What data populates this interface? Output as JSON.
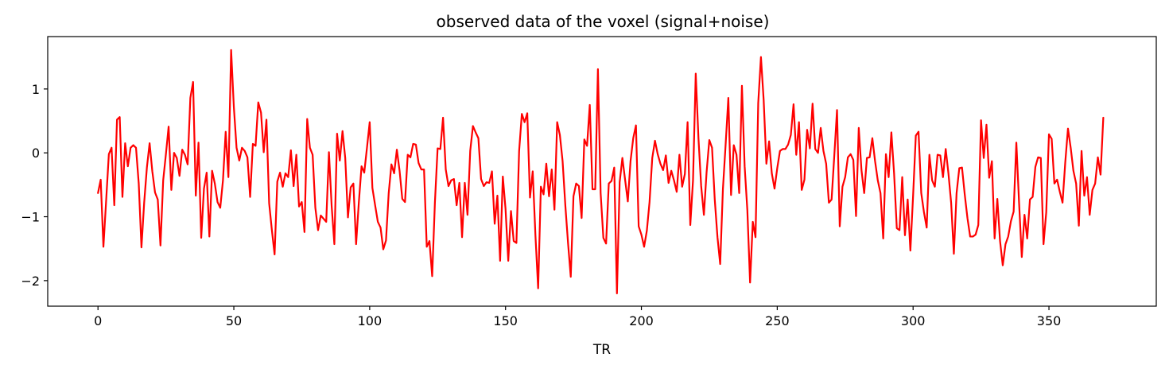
{
  "chart_data": {
    "type": "line",
    "title": "observed data of the voxel (signal+noise)",
    "xlabel": "TR",
    "ylabel": "",
    "xlim": [
      -18.5,
      389.5
    ],
    "ylim": [
      -2.4,
      1.82
    ],
    "xticks": [
      0,
      50,
      100,
      150,
      200,
      250,
      300,
      350
    ],
    "xtick_labels": [
      "0",
      "50",
      "100",
      "150",
      "200",
      "250",
      "300",
      "350"
    ],
    "yticks": [
      1,
      0,
      -1,
      -2
    ],
    "ytick_labels": [
      "1",
      "0",
      "−1",
      "−2"
    ],
    "grid": false,
    "legend": "none",
    "series": [
      {
        "color": "#ff0000",
        "values": [
          -0.63,
          -0.42,
          -1.47,
          -0.75,
          -0.02,
          0.08,
          -0.82,
          0.52,
          0.56,
          -0.69,
          0.15,
          -0.21,
          0.08,
          0.12,
          0.08,
          -0.48,
          -1.48,
          -0.78,
          -0.23,
          0.15,
          -0.29,
          -0.62,
          -0.73,
          -1.45,
          -0.43,
          -0.02,
          0.41,
          -0.58,
          0.0,
          -0.08,
          -0.36,
          0.05,
          -0.03,
          -0.18,
          0.86,
          1.11,
          -0.67,
          0.16,
          -1.33,
          -0.56,
          -0.31,
          -1.31,
          -0.28,
          -0.48,
          -0.77,
          -0.86,
          -0.43,
          0.33,
          -0.38,
          1.61,
          0.72,
          0.08,
          -0.12,
          0.08,
          0.03,
          -0.07,
          -0.69,
          0.14,
          0.11,
          0.79,
          0.63,
          0.01,
          0.52,
          -0.79,
          -1.21,
          -1.59,
          -0.45,
          -0.31,
          -0.53,
          -0.32,
          -0.38,
          0.04,
          -0.52,
          -0.03,
          -0.84,
          -0.77,
          -1.24,
          0.53,
          0.08,
          -0.03,
          -0.86,
          -1.21,
          -0.98,
          -1.03,
          -1.08,
          0.01,
          -0.83,
          -1.43,
          0.3,
          -0.12,
          0.34,
          -0.08,
          -1.01,
          -0.54,
          -0.48,
          -1.43,
          -0.78,
          -0.21,
          -0.31,
          0.08,
          0.48,
          -0.55,
          -0.82,
          -1.08,
          -1.17,
          -1.51,
          -1.37,
          -0.63,
          -0.18,
          -0.32,
          0.05,
          -0.28,
          -0.72,
          -0.77,
          -0.03,
          -0.07,
          0.14,
          0.13,
          -0.16,
          -0.26,
          -0.26,
          -1.47,
          -1.38,
          -1.93,
          -0.78,
          0.07,
          0.06,
          0.55,
          -0.26,
          -0.52,
          -0.43,
          -0.41,
          -0.82,
          -0.47,
          -1.32,
          -0.47,
          -0.97,
          0.03,
          0.42,
          0.32,
          0.23,
          -0.41,
          -0.52,
          -0.46,
          -0.47,
          -0.29,
          -1.11,
          -0.67,
          -1.69,
          -0.37,
          -0.88,
          -1.69,
          -0.91,
          -1.38,
          -1.41,
          0.03,
          0.61,
          0.48,
          0.62,
          -0.7,
          -0.29,
          -1.29,
          -2.12,
          -0.53,
          -0.65,
          -0.17,
          -0.68,
          -0.26,
          -0.89,
          0.48,
          0.28,
          -0.13,
          -0.82,
          -1.41,
          -1.94,
          -0.68,
          -0.48,
          -0.52,
          -1.02,
          0.21,
          0.11,
          0.75,
          -0.57,
          -0.57,
          1.31,
          -0.63,
          -1.33,
          -1.42,
          -0.48,
          -0.44,
          -0.23,
          -2.2,
          -0.46,
          -0.08,
          -0.42,
          -0.76,
          -0.13,
          0.23,
          0.43,
          -1.15,
          -1.28,
          -1.47,
          -1.22,
          -0.77,
          -0.08,
          0.19,
          -0.02,
          -0.17,
          -0.27,
          -0.04,
          -0.47,
          -0.28,
          -0.43,
          -0.61,
          -0.03,
          -0.53,
          -0.33,
          0.48,
          -1.13,
          -0.43,
          1.24,
          0.23,
          -0.52,
          -0.97,
          -0.3,
          0.2,
          0.08,
          -0.73,
          -1.32,
          -1.74,
          -0.57,
          0.13,
          0.86,
          -0.66,
          0.12,
          -0.03,
          -0.63,
          1.05,
          -0.21,
          -0.9,
          -2.03,
          -1.08,
          -1.32,
          0.78,
          1.5,
          0.83,
          -0.17,
          0.18,
          -0.32,
          -0.56,
          -0.24,
          0.03,
          0.06,
          0.06,
          0.13,
          0.28,
          0.76,
          -0.03,
          0.48,
          -0.58,
          -0.42,
          0.36,
          0.07,
          0.77,
          0.06,
          0.0,
          0.39,
          0.03,
          -0.17,
          -0.78,
          -0.73,
          -0.04,
          0.67,
          -1.15,
          -0.53,
          -0.38,
          -0.07,
          -0.02,
          -0.11,
          -0.99,
          0.39,
          -0.27,
          -0.63,
          -0.08,
          -0.07,
          0.23,
          -0.13,
          -0.43,
          -0.63,
          -1.34,
          -0.02,
          -0.38,
          0.32,
          -0.32,
          -1.18,
          -1.21,
          -0.38,
          -1.29,
          -0.73,
          -1.53,
          -0.67,
          0.27,
          0.33,
          -0.63,
          -0.93,
          -1.17,
          -0.03,
          -0.43,
          -0.53,
          -0.03,
          -0.04,
          -0.38,
          0.06,
          -0.32,
          -0.78,
          -1.58,
          -0.63,
          -0.24,
          -0.23,
          -0.65,
          -1.02,
          -1.31,
          -1.31,
          -1.28,
          -1.13,
          0.51,
          -0.08,
          0.44,
          -0.39,
          -0.13,
          -1.34,
          -0.72,
          -1.38,
          -1.76,
          -1.43,
          -1.31,
          -1.07,
          -0.92,
          0.16,
          -0.78,
          -1.63,
          -0.97,
          -1.34,
          -0.73,
          -0.69,
          -0.22,
          -0.07,
          -0.08,
          -1.43,
          -0.93,
          0.29,
          0.22,
          -0.48,
          -0.42,
          -0.61,
          -0.78,
          -0.15,
          0.38,
          0.08,
          -0.28,
          -0.48,
          -1.14,
          0.03,
          -0.67,
          -0.38,
          -0.97,
          -0.58,
          -0.48,
          -0.07,
          -0.34,
          0.55
        ]
      }
    ]
  }
}
